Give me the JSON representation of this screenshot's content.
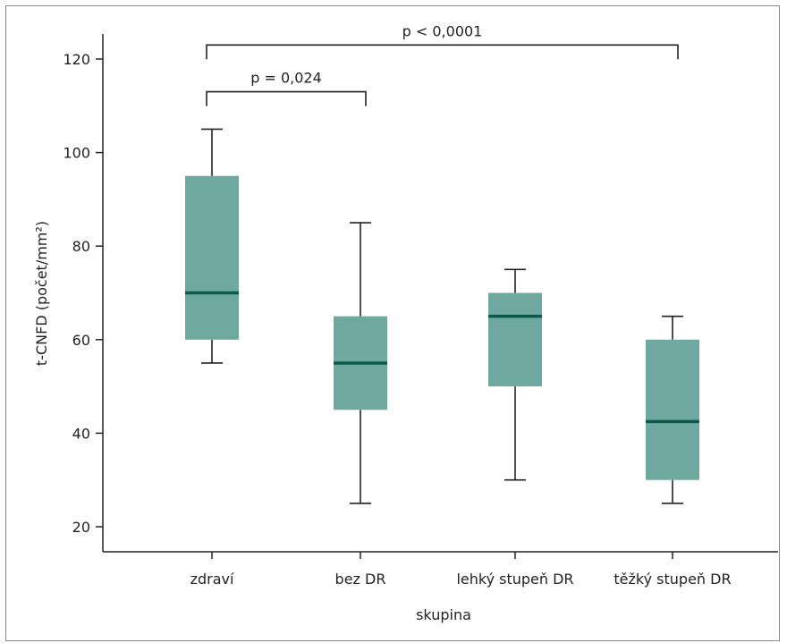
{
  "chart_data": {
    "type": "box",
    "xlabel": "skupina",
    "ylabel": "t-CNFD (počet/mm²)",
    "ylim": [
      15,
      125
    ],
    "yticks": [
      20,
      40,
      60,
      80,
      100,
      120
    ],
    "categories": [
      "zdraví",
      "bez DR",
      "lehký stupeň DR",
      "těžký stupeň DR"
    ],
    "boxes": [
      {
        "min": 55,
        "q1": 60,
        "median": 70,
        "q3": 95,
        "max": 105
      },
      {
        "min": 25,
        "q1": 45,
        "median": 55,
        "q3": 65,
        "max": 85
      },
      {
        "min": 30,
        "q1": 50,
        "median": 65,
        "q3": 70,
        "max": 75
      },
      {
        "min": 25,
        "q1": 30,
        "median": 42.5,
        "q3": 60,
        "max": 65
      }
    ],
    "annotations": [
      {
        "text": "p = 0,024",
        "from": 0,
        "to": 1,
        "y": 113
      },
      {
        "text": "p < 0,0001",
        "from": 0,
        "to": 3,
        "y": 123
      }
    ],
    "colors": {
      "box_fill": "#6fa89e",
      "median": "#0d5a4a",
      "line": "#222222"
    },
    "grid": false
  }
}
